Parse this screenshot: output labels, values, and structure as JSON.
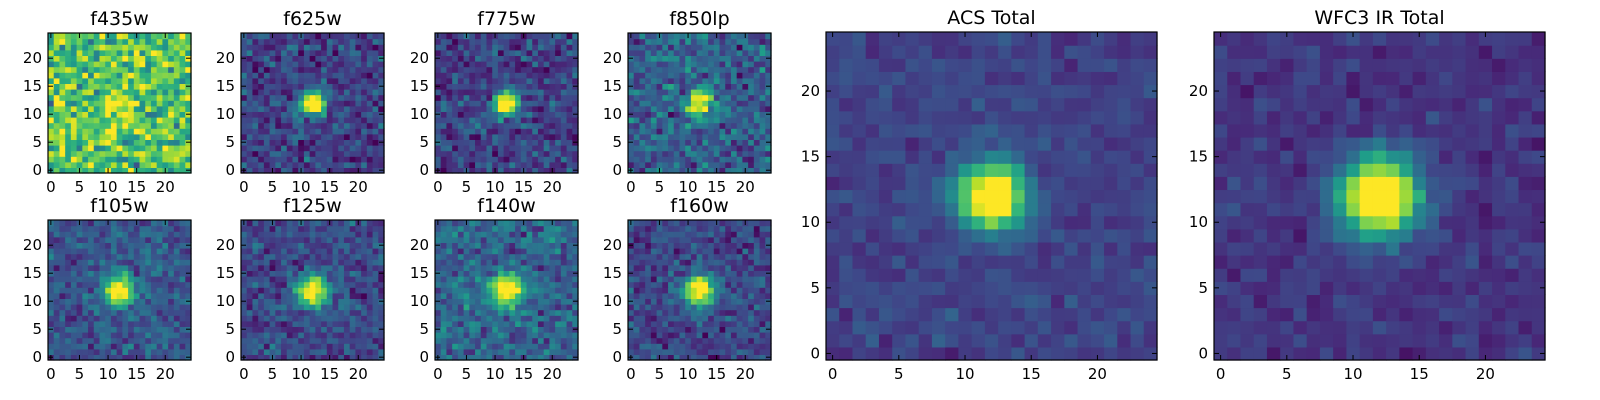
{
  "colormap": [
    "#440154",
    "#482878",
    "#3e4989",
    "#31688e",
    "#26828e",
    "#1f9e89",
    "#35b779",
    "#6ece58",
    "#b5de2b",
    "#fde725"
  ],
  "chart_data": [
    {
      "type": "heatmap",
      "title": "f435w",
      "grid": false,
      "xlim": [
        0,
        24
      ],
      "ylim": [
        0,
        24
      ],
      "xticks": [
        0,
        5,
        10,
        15,
        20
      ],
      "yticks": [
        0,
        5,
        10,
        15,
        20
      ],
      "z": {
        "peak_x": 12,
        "peak_y": 12,
        "peak": 0.2,
        "sigma": 2.0,
        "background": 0.72,
        "noise": 0.24,
        "seed": 11
      }
    },
    {
      "type": "heatmap",
      "title": "f625w",
      "grid": false,
      "xlim": [
        0,
        24
      ],
      "ylim": [
        0,
        24
      ],
      "xticks": [
        0,
        5,
        10,
        15,
        20
      ],
      "yticks": [
        0,
        5,
        10,
        15,
        20
      ],
      "z": {
        "peak_x": 12,
        "peak_y": 12,
        "peak": 0.75,
        "sigma": 1.5,
        "background": 0.2,
        "noise": 0.14,
        "seed": 23
      }
    },
    {
      "type": "heatmap",
      "title": "f775w",
      "grid": false,
      "xlim": [
        0,
        24
      ],
      "ylim": [
        0,
        24
      ],
      "xticks": [
        0,
        5,
        10,
        15,
        20
      ],
      "yticks": [
        0,
        5,
        10,
        15,
        20
      ],
      "z": {
        "peak_x": 12,
        "peak_y": 12,
        "peak": 0.75,
        "sigma": 1.5,
        "background": 0.2,
        "noise": 0.14,
        "seed": 37
      }
    },
    {
      "type": "heatmap",
      "title": "f850lp",
      "grid": false,
      "xlim": [
        0,
        24
      ],
      "ylim": [
        0,
        24
      ],
      "xticks": [
        0,
        5,
        10,
        15,
        20
      ],
      "yticks": [
        0,
        5,
        10,
        15,
        20
      ],
      "z": {
        "peak_x": 12,
        "peak_y": 12,
        "peak": 0.65,
        "sigma": 1.5,
        "background": 0.3,
        "noise": 0.16,
        "seed": 41
      }
    },
    {
      "type": "heatmap",
      "title": "f105w",
      "grid": false,
      "xlim": [
        0,
        24
      ],
      "ylim": [
        0,
        24
      ],
      "xticks": [
        0,
        5,
        10,
        15,
        20
      ],
      "yticks": [
        0,
        5,
        10,
        15,
        20
      ],
      "z": {
        "peak_x": 12,
        "peak_y": 12,
        "peak": 0.7,
        "sigma": 1.8,
        "background": 0.27,
        "noise": 0.12,
        "seed": 53
      }
    },
    {
      "type": "heatmap",
      "title": "f125w",
      "grid": false,
      "xlim": [
        0,
        24
      ],
      "ylim": [
        0,
        24
      ],
      "xticks": [
        0,
        5,
        10,
        15,
        20
      ],
      "yticks": [
        0,
        5,
        10,
        15,
        20
      ],
      "z": {
        "peak_x": 12,
        "peak_y": 12,
        "peak": 0.7,
        "sigma": 1.9,
        "background": 0.23,
        "noise": 0.12,
        "seed": 67
      }
    },
    {
      "type": "heatmap",
      "title": "f140w",
      "grid": false,
      "xlim": [
        0,
        24
      ],
      "ylim": [
        0,
        24
      ],
      "xticks": [
        0,
        5,
        10,
        15,
        20
      ],
      "yticks": [
        0,
        5,
        10,
        15,
        20
      ],
      "z": {
        "peak_x": 12,
        "peak_y": 12,
        "peak": 0.6,
        "sigma": 2.0,
        "background": 0.32,
        "noise": 0.14,
        "seed": 71
      }
    },
    {
      "type": "heatmap",
      "title": "f160w",
      "grid": false,
      "xlim": [
        0,
        24
      ],
      "ylim": [
        0,
        24
      ],
      "xticks": [
        0,
        5,
        10,
        15,
        20
      ],
      "yticks": [
        0,
        5,
        10,
        15,
        20
      ],
      "z": {
        "peak_x": 12,
        "peak_y": 12,
        "peak": 0.7,
        "sigma": 1.9,
        "background": 0.22,
        "noise": 0.12,
        "seed": 83
      }
    },
    {
      "type": "heatmap",
      "title": "ACS Total",
      "grid": false,
      "xlim": [
        0,
        24
      ],
      "ylim": [
        0,
        24
      ],
      "xticks": [
        0,
        5,
        10,
        15,
        20
      ],
      "yticks": [
        0,
        5,
        10,
        15,
        20
      ],
      "z": {
        "peak_x": 12,
        "peak_y": 12,
        "peak": 0.82,
        "sigma": 1.7,
        "background": 0.2,
        "noise": 0.06,
        "seed": 97
      }
    },
    {
      "type": "heatmap",
      "title": "WFC3 IR Total",
      "grid": false,
      "xlim": [
        0,
        24
      ],
      "ylim": [
        0,
        24
      ],
      "xticks": [
        0,
        5,
        10,
        15,
        20
      ],
      "yticks": [
        0,
        5,
        10,
        15,
        20
      ],
      "z": {
        "peak_x": 12,
        "peak_y": 12,
        "peak": 0.82,
        "sigma": 2.1,
        "background": 0.16,
        "noise": 0.06,
        "seed": 101
      }
    }
  ]
}
